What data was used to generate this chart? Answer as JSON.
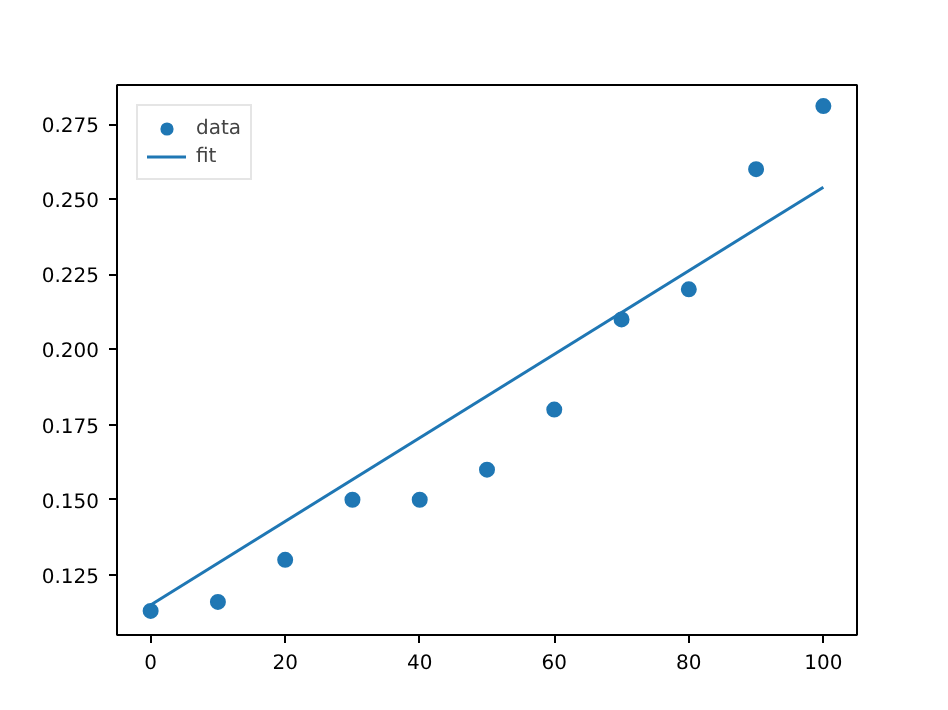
{
  "chart_data": {
    "type": "scatter",
    "xlim": [
      -5,
      105
    ],
    "ylim": [
      0.105,
      0.288
    ],
    "xticks": [
      0,
      20,
      40,
      60,
      80,
      100
    ],
    "yticks": [
      {
        "value": 0.125,
        "label": "0.125"
      },
      {
        "value": 0.15,
        "label": "0.150"
      },
      {
        "value": 0.175,
        "label": "0.175"
      },
      {
        "value": 0.2,
        "label": "0.200"
      },
      {
        "value": 0.225,
        "label": "0.225"
      },
      {
        "value": 0.25,
        "label": "0.250"
      },
      {
        "value": 0.275,
        "label": "0.275"
      }
    ],
    "grid": false,
    "legend": "top left",
    "series": [
      {
        "name": "data",
        "marker": "circle",
        "color": "#1f77b4",
        "x": [
          0,
          10,
          20,
          30,
          40,
          50,
          60,
          70,
          80,
          90,
          100
        ],
        "values": [
          0.113,
          0.116,
          0.13,
          0.15,
          0.15,
          0.16,
          0.18,
          0.21,
          0.22,
          0.26,
          0.281
        ]
      },
      {
        "name": "fit",
        "type": "line",
        "color": "#1f77b4",
        "x": [
          0,
          100
        ],
        "values": [
          0.115,
          0.254
        ]
      }
    ]
  }
}
